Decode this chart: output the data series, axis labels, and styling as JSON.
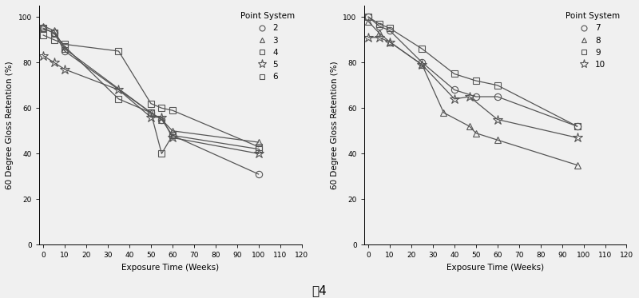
{
  "left_title": "Point System",
  "left_ylabel": "60 Degree Gloss Retention (%)",
  "left_xlabel": "Exposure Time (Weeks)",
  "left_xlim": [
    -2,
    120
  ],
  "left_ylim": [
    0,
    105
  ],
  "left_xticks": [
    0,
    10,
    20,
    30,
    40,
    50,
    60,
    70,
    80,
    90,
    100,
    110,
    120
  ],
  "left_yticks": [
    0,
    20,
    40,
    60,
    80,
    100
  ],
  "left_series": [
    {
      "label": "2",
      "marker": "o",
      "fillstyle": "none",
      "x": [
        0,
        5,
        10,
        50,
        55,
        60,
        100
      ],
      "y": [
        95,
        93,
        85,
        58,
        55,
        48,
        31
      ]
    },
    {
      "label": "3",
      "marker": "^",
      "fillstyle": "none",
      "x": [
        0,
        5,
        10,
        50,
        55,
        60,
        100
      ],
      "y": [
        96,
        94,
        86,
        58,
        55,
        50,
        45
      ]
    },
    {
      "label": "4",
      "marker": "s",
      "fillstyle": "none",
      "x": [
        0,
        5,
        10,
        35,
        50,
        55,
        60,
        100
      ],
      "y": [
        95,
        93,
        87,
        64,
        58,
        40,
        48,
        42
      ]
    },
    {
      "label": "5",
      "marker": "*",
      "fillstyle": "none",
      "x": [
        0,
        5,
        10,
        35,
        50,
        55,
        60,
        100
      ],
      "y": [
        83,
        80,
        77,
        68,
        56,
        56,
        47,
        40
      ]
    },
    {
      "label": "6",
      "marker": "s",
      "fillstyle": "none",
      "x": [
        0,
        5,
        10,
        35,
        50,
        55,
        60,
        100
      ],
      "y": [
        92,
        90,
        88,
        85,
        62,
        60,
        59,
        43
      ]
    }
  ],
  "right_title": "Point System",
  "right_ylabel": "60 Degree Gloss Retention (%)",
  "right_xlabel": "Exposure Time (Weeks)",
  "right_xlim": [
    -2,
    120
  ],
  "right_ylim": [
    0,
    105
  ],
  "right_xticks": [
    0,
    10,
    20,
    30,
    40,
    50,
    60,
    70,
    80,
    90,
    100,
    110,
    120
  ],
  "right_yticks": [
    0,
    20,
    40,
    60,
    80,
    100
  ],
  "right_series": [
    {
      "label": "7",
      "marker": "o",
      "fillstyle": "none",
      "x": [
        0,
        5,
        10,
        25,
        40,
        50,
        60,
        97
      ],
      "y": [
        100,
        96,
        94,
        80,
        68,
        65,
        65,
        52
      ]
    },
    {
      "label": "8",
      "marker": "^",
      "fillstyle": "none",
      "x": [
        0,
        5,
        10,
        25,
        35,
        47,
        50,
        60,
        97
      ],
      "y": [
        98,
        93,
        89,
        79,
        58,
        52,
        49,
        46,
        35
      ]
    },
    {
      "label": "9",
      "marker": "s",
      "fillstyle": "none",
      "x": [
        0,
        5,
        10,
        25,
        40,
        50,
        60,
        97
      ],
      "y": [
        100,
        97,
        95,
        86,
        75,
        72,
        70,
        52
      ]
    },
    {
      "label": "10",
      "marker": "*",
      "fillstyle": "none",
      "x": [
        0,
        5,
        10,
        25,
        40,
        47,
        60,
        97
      ],
      "y": [
        91,
        91,
        89,
        79,
        64,
        65,
        55,
        47
      ]
    }
  ],
  "color": "#555555",
  "background_color": "#f0f0f0",
  "caption": "图4"
}
